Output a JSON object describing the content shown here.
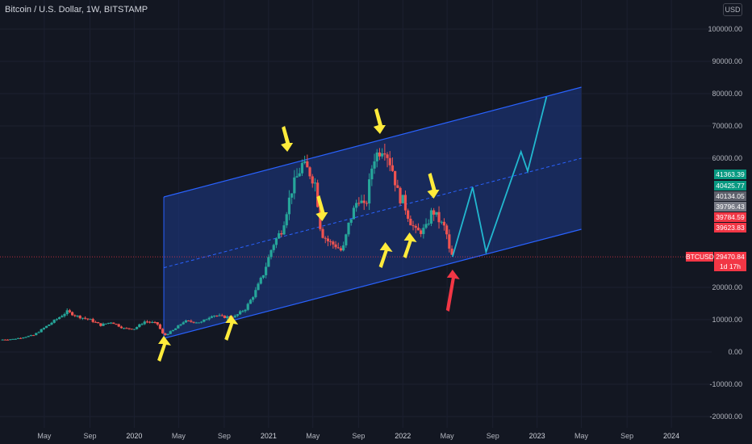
{
  "title": "Bitcoin / U.S. Dollar, 1W, BITSTAMP",
  "currency_button": "USD",
  "y_ticks": [
    {
      "value": 100000,
      "label": "100000.00"
    },
    {
      "value": 90000,
      "label": "90000.00"
    },
    {
      "value": 80000,
      "label": "80000.00"
    },
    {
      "value": 70000,
      "label": "70000.00"
    },
    {
      "value": 60000,
      "label": "60000.00"
    },
    {
      "value": 20000,
      "label": "20000.00"
    },
    {
      "value": 10000,
      "label": "10000.00"
    },
    {
      "value": 0,
      "label": "0.00"
    },
    {
      "value": -10000,
      "label": "-10000.00"
    },
    {
      "value": -20000,
      "label": "-20000.00"
    }
  ],
  "x_ticks": [
    {
      "t": 2019.33,
      "label": "May"
    },
    {
      "t": 2019.67,
      "label": "Sep"
    },
    {
      "t": 2020.0,
      "label": "2020"
    },
    {
      "t": 2020.33,
      "label": "May"
    },
    {
      "t": 2020.67,
      "label": "Sep"
    },
    {
      "t": 2021.0,
      "label": "2021"
    },
    {
      "t": 2021.33,
      "label": "May"
    },
    {
      "t": 2021.67,
      "label": "Sep"
    },
    {
      "t": 2022.0,
      "label": "2022"
    },
    {
      "t": 2022.33,
      "label": "May"
    },
    {
      "t": 2022.67,
      "label": "Sep"
    },
    {
      "t": 2023.0,
      "label": "2023"
    },
    {
      "t": 2023.33,
      "label": "May"
    },
    {
      "t": 2023.67,
      "label": "Sep"
    },
    {
      "t": 2024.0,
      "label": "2024"
    }
  ],
  "price_pills": [
    {
      "value": 41363.39,
      "label": "41363.39",
      "color": "#089981"
    },
    {
      "value": 40425.77,
      "label": "40425.77",
      "color": "#089981"
    },
    {
      "value": 40134.05,
      "label": "40134.05",
      "color": "#5d606b"
    },
    {
      "value": 39796.43,
      "label": "39796.43",
      "color": "#787b86"
    },
    {
      "value": 39784.59,
      "label": "39784.59",
      "color": "#f23645"
    },
    {
      "value": 39623.83,
      "label": "39623.83",
      "color": "#f23645"
    }
  ],
  "last_price": {
    "symbol": "BTCUSD",
    "value": 29470.84,
    "label": "29470.84",
    "countdown": "1d 17h",
    "color": "#f23645"
  },
  "colors": {
    "up": "#26a69a",
    "down": "#ef5350",
    "channel": "#2962ff",
    "channel_fill": "#1e3a8a",
    "projection": "#22b8cf",
    "arrow_yellow": "#ffeb3b",
    "arrow_red": "#f23645"
  },
  "chart_data": {
    "type": "candlestick",
    "title": "Bitcoin / U.S. Dollar, 1W, BITSTAMP",
    "ylim": [
      -22000,
      105000
    ],
    "xlim": [
      2019.0,
      2024.3
    ],
    "x_unit": "fractional year",
    "price_path": [
      [
        2019.0,
        3800
      ],
      [
        2019.1,
        4000
      ],
      [
        2019.25,
        5200
      ],
      [
        2019.33,
        7500
      ],
      [
        2019.45,
        11000
      ],
      [
        2019.5,
        12500
      ],
      [
        2019.58,
        11000
      ],
      [
        2019.67,
        10000
      ],
      [
        2019.75,
        8300
      ],
      [
        2019.83,
        9300
      ],
      [
        2019.92,
        7300
      ],
      [
        2020.0,
        7200
      ],
      [
        2020.08,
        9500
      ],
      [
        2020.17,
        8800
      ],
      [
        2020.22,
        5000
      ],
      [
        2020.3,
        7000
      ],
      [
        2020.37,
        9500
      ],
      [
        2020.5,
        9200
      ],
      [
        2020.58,
        11500
      ],
      [
        2020.67,
        10800
      ],
      [
        2020.75,
        11000
      ],
      [
        2020.83,
        13500
      ],
      [
        2020.9,
        18500
      ],
      [
        2020.96,
        24000
      ],
      [
        2021.03,
        33000
      ],
      [
        2021.1,
        38000
      ],
      [
        2021.17,
        50000
      ],
      [
        2021.25,
        58000
      ],
      [
        2021.3,
        56000
      ],
      [
        2021.35,
        52000
      ],
      [
        2021.39,
        37000
      ],
      [
        2021.45,
        34000
      ],
      [
        2021.5,
        33000
      ],
      [
        2021.55,
        31000
      ],
      [
        2021.6,
        40000
      ],
      [
        2021.67,
        48000
      ],
      [
        2021.72,
        44000
      ],
      [
        2021.78,
        60000
      ],
      [
        2021.86,
        64000
      ],
      [
        2021.92,
        57000
      ],
      [
        2021.97,
        48000
      ],
      [
        2022.0,
        47000
      ],
      [
        2022.05,
        41000
      ],
      [
        2022.1,
        37000
      ],
      [
        2022.17,
        38000
      ],
      [
        2022.22,
        44000
      ],
      [
        2022.28,
        40000
      ],
      [
        2022.32,
        38000
      ],
      [
        2022.35,
        30500
      ],
      [
        2022.37,
        29470.84
      ]
    ],
    "channel": {
      "upper": [
        [
          2020.22,
          48000
        ],
        [
          2023.33,
          82000
        ]
      ],
      "lower": [
        [
          2020.22,
          4200
        ],
        [
          2023.33,
          38000
        ]
      ],
      "middle": [
        [
          2020.22,
          26100
        ],
        [
          2023.33,
          60000
        ]
      ]
    },
    "projection": [
      [
        2022.37,
        29470.84
      ],
      [
        2022.52,
        51000
      ],
      [
        2022.62,
        31000
      ],
      [
        2022.88,
        62000
      ],
      [
        2022.93,
        56000
      ],
      [
        2023.07,
        79000
      ]
    ],
    "arrows": [
      {
        "color": "yellow",
        "direction": "up",
        "t": 2020.22,
        "value": 5000
      },
      {
        "color": "yellow",
        "direction": "up",
        "t": 2020.72,
        "value": 11500
      },
      {
        "color": "yellow",
        "direction": "down",
        "t": 2021.14,
        "value": 62000
      },
      {
        "color": "yellow",
        "direction": "down",
        "t": 2021.4,
        "value": 40500
      },
      {
        "color": "yellow",
        "direction": "up",
        "t": 2021.87,
        "value": 34000
      },
      {
        "color": "yellow",
        "direction": "down",
        "t": 2021.83,
        "value": 67500
      },
      {
        "color": "yellow",
        "direction": "up",
        "t": 2022.05,
        "value": 37000
      },
      {
        "color": "yellow",
        "direction": "down",
        "t": 2022.23,
        "value": 47500
      },
      {
        "color": "red",
        "direction": "up",
        "t": 2022.37,
        "value": 25500
      }
    ]
  }
}
